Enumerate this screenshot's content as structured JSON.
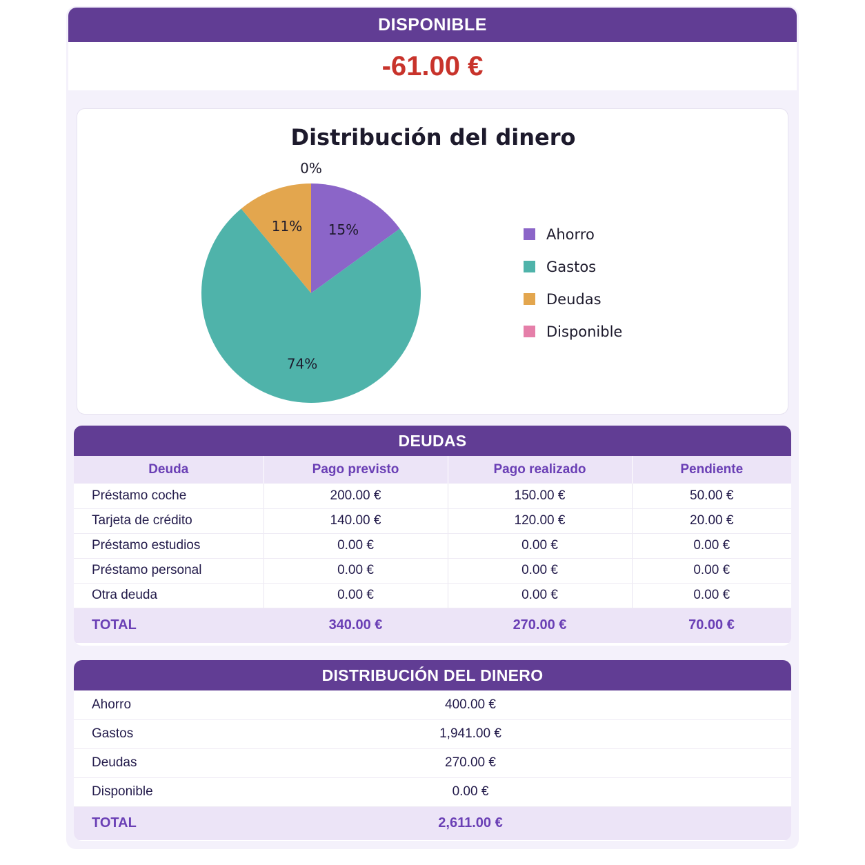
{
  "disponible": {
    "title": "DISPONIBLE",
    "amount": "-61.00 €"
  },
  "chart_data": {
    "type": "pie",
    "title": "Distribución del dinero",
    "categories": [
      "Ahorro",
      "Gastos",
      "Deudas",
      "Disponible"
    ],
    "values": [
      15,
      74,
      11,
      0
    ],
    "labels": [
      "15%",
      "74%",
      "11%",
      "0%"
    ],
    "colors": [
      "#8b65c8",
      "#4fb3aa",
      "#e3a64e",
      "#e57fa9"
    ],
    "legend_position": "right"
  },
  "deudas": {
    "title": "DEUDAS",
    "columns": [
      "Deuda",
      "Pago previsto",
      "Pago realizado",
      "Pendiente"
    ],
    "rows": [
      [
        "Préstamo coche",
        "200.00 €",
        "150.00 €",
        "50.00 €"
      ],
      [
        "Tarjeta de crédito",
        "140.00 €",
        "120.00 €",
        "20.00 €"
      ],
      [
        "Préstamo estudios",
        "0.00 €",
        "0.00 €",
        "0.00 €"
      ],
      [
        "Préstamo personal",
        "0.00 €",
        "0.00 €",
        "0.00 €"
      ],
      [
        "Otra deuda",
        "0.00 €",
        "0.00 €",
        "0.00 €"
      ]
    ],
    "total": [
      "TOTAL",
      "340.00 €",
      "270.00 €",
      "70.00 €"
    ]
  },
  "distribucion": {
    "title": "DISTRIBUCIÓN DEL DINERO",
    "rows": [
      [
        "Ahorro",
        "400.00 €"
      ],
      [
        "Gastos",
        "1,941.00 €"
      ],
      [
        "Deudas",
        "270.00 €"
      ],
      [
        "Disponible",
        "0.00 €"
      ]
    ],
    "total": [
      "TOTAL",
      "2,611.00 €"
    ]
  }
}
